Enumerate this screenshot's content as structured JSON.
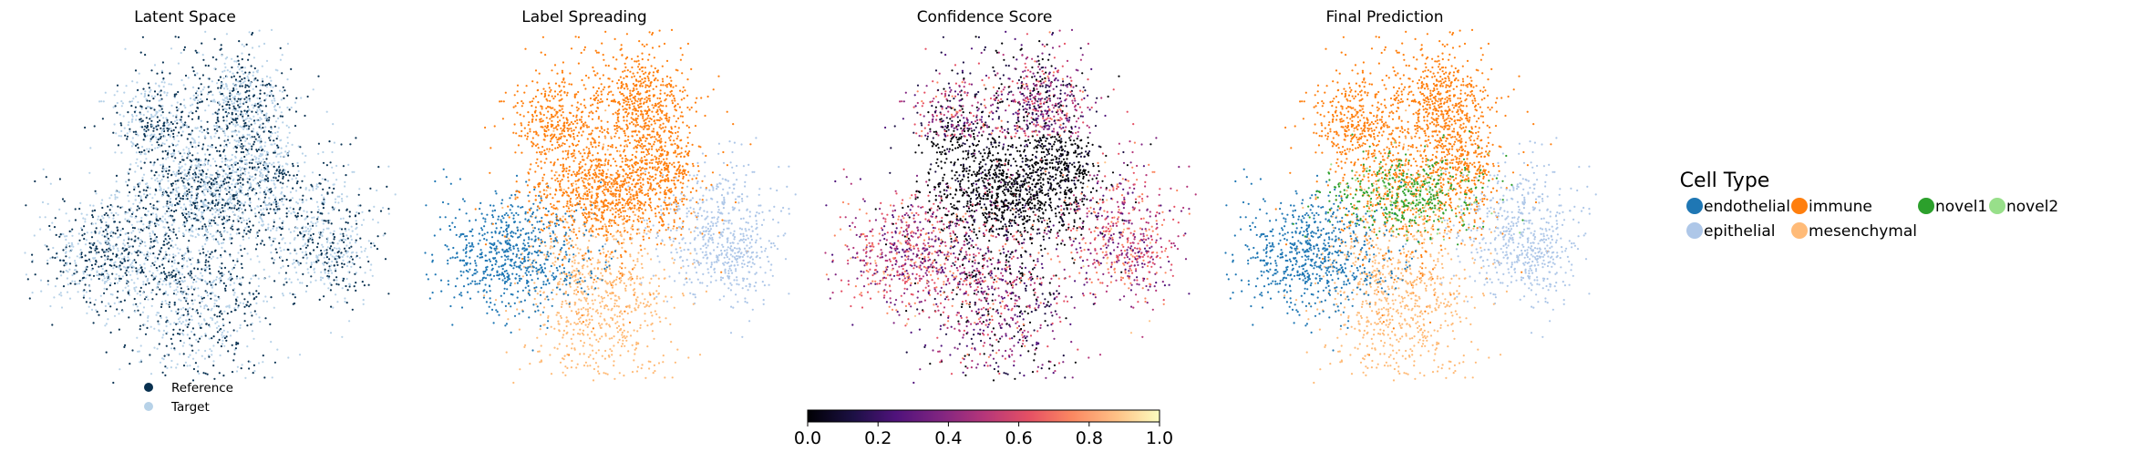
{
  "chart_data": [
    {
      "type": "scatter",
      "title": "Latent Space",
      "legend": [
        {
          "label": "Reference",
          "color": "#08304f"
        },
        {
          "label": "Target",
          "color": "#b7d2e8"
        }
      ],
      "legend_placement": "bottom"
    },
    {
      "type": "scatter",
      "title": "Label Spreading"
    },
    {
      "type": "scatter",
      "title": "Confidence Score",
      "colormap": "magma",
      "colorbar": {
        "min": 0.0,
        "max": 1.0,
        "ticks": [
          "0.0",
          "0.2",
          "0.4",
          "0.6",
          "0.8",
          "1.0"
        ]
      }
    },
    {
      "type": "scatter",
      "title": "Final Prediction"
    }
  ],
  "cell_type_legend": {
    "title": "Cell Type",
    "entries": [
      {
        "label": "endothelial",
        "color": "#1f77b4"
      },
      {
        "label": "immune",
        "color": "#ff7f0e"
      },
      {
        "label": "novel1",
        "color": "#2ca02c"
      },
      {
        "label": "novel2",
        "color": "#98df8a"
      },
      {
        "label": "epithelial",
        "color": "#aec7e8"
      },
      {
        "label": "mesenchymal",
        "color": "#ffbb78"
      }
    ]
  }
}
